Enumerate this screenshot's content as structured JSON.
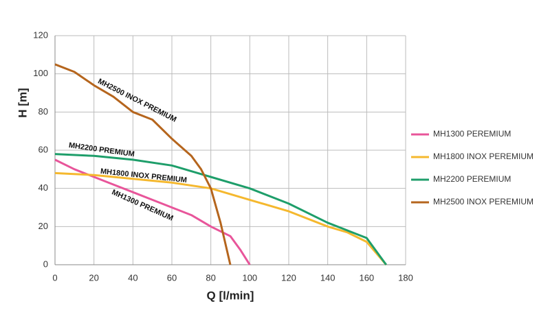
{
  "chart_data": {
    "type": "line",
    "xlabel": "Q [l/min]",
    "ylabel": "H [m]",
    "xlim": [
      0,
      180
    ],
    "ylim": [
      0,
      120
    ],
    "xticks": [
      0,
      20,
      40,
      60,
      80,
      100,
      120,
      140,
      160,
      180
    ],
    "yticks": [
      0,
      20,
      40,
      60,
      80,
      100,
      120
    ],
    "grid": true,
    "legend": "right",
    "series": [
      {
        "name": "MH1300 PEREMIUM",
        "color": "#e8559a",
        "x": [
          0,
          10,
          20,
          30,
          40,
          50,
          60,
          70,
          80,
          90,
          95,
          100
        ],
        "values": [
          55,
          50,
          46,
          42,
          38,
          34,
          30,
          26,
          20,
          15,
          8,
          0
        ]
      },
      {
        "name": "MH1800 INOX PEREMIUM",
        "color": "#f5b82e",
        "x": [
          0,
          20,
          40,
          60,
          80,
          100,
          120,
          140,
          150,
          160,
          170
        ],
        "values": [
          48,
          47,
          45,
          43,
          40,
          34,
          28,
          20,
          17,
          12,
          0
        ]
      },
      {
        "name": "MH2200 PEREMIUM",
        "color": "#1e9e6a",
        "x": [
          0,
          20,
          40,
          60,
          80,
          100,
          120,
          140,
          150,
          160,
          165,
          170
        ],
        "values": [
          58,
          57,
          55,
          52,
          46,
          40,
          32,
          22,
          18,
          14,
          7,
          0
        ]
      },
      {
        "name": "MH2500 INOX PEREMIUM",
        "color": "#b5651d",
        "x": [
          0,
          10,
          20,
          30,
          40,
          50,
          60,
          70,
          75,
          80,
          85,
          90
        ],
        "values": [
          105,
          101,
          94,
          88,
          80,
          76,
          66,
          57,
          50,
          40,
          22,
          0
        ]
      }
    ],
    "annotations": [
      "MH2500 INOX PREMIUM",
      "MH2200 PREMIUM",
      "MH1800 INOX PREMIUM",
      "MH1300 PREMIUM"
    ]
  }
}
